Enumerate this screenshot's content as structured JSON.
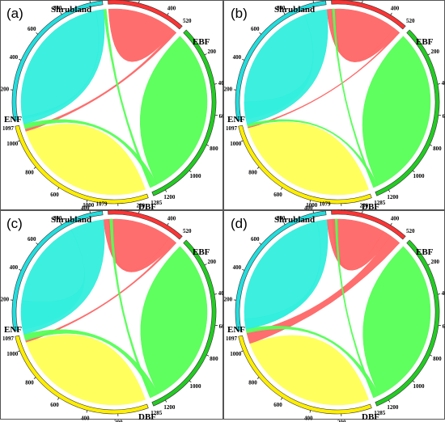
{
  "colors": {
    "Shrubland": "#ff6666",
    "EBF": "#55ff55",
    "DBF": "#ffff55",
    "ENF": "#33eedd"
  },
  "ring_colors": {
    "Shrubland": "#ff3333",
    "EBF": "#22cc22",
    "DBF": "#ffee00",
    "ENF": "#22dddd"
  },
  "tick_labels": {
    "Shrubland": [
      "200",
      "400"
    ],
    "EBF": [
      "200",
      "400",
      "600",
      "800",
      "1000",
      "1200"
    ],
    "DBF": [
      "200",
      "400",
      "600",
      "800",
      "1000"
    ],
    "ENF": [
      "200",
      "400",
      "600",
      "800",
      "1000"
    ]
  },
  "panels": [
    {
      "label": "(a)",
      "chart_data": {
        "type": "chord",
        "groups": [
          {
            "name": "Shrubland",
            "total": 520
          },
          {
            "name": "EBF",
            "total": 1285
          },
          {
            "name": "DBF",
            "total": 1097
          },
          {
            "name": "ENF",
            "total": 1079
          }
        ],
        "totals_labels": [
          "520",
          "1285",
          "1097",
          "1079"
        ],
        "flows": [
          {
            "from": "Shrubland",
            "to": "Shrubland",
            "value": 500
          },
          {
            "from": "Shrubland",
            "to": "DBF",
            "value": 20
          },
          {
            "from": "EBF",
            "to": "EBF",
            "value": 1230
          },
          {
            "from": "EBF",
            "to": "DBF",
            "value": 35
          },
          {
            "from": "EBF",
            "to": "ENF",
            "value": 20
          },
          {
            "from": "DBF",
            "to": "DBF",
            "value": 1042
          },
          {
            "from": "ENF",
            "to": "ENF",
            "value": 1025
          },
          {
            "from": "ENF",
            "to": "DBF",
            "value": 54
          }
        ]
      }
    },
    {
      "label": "(b)",
      "chart_data": {
        "type": "chord",
        "groups": [
          {
            "name": "Shrubland",
            "total": 520
          },
          {
            "name": "EBF",
            "total": 1285
          },
          {
            "name": "DBF",
            "total": 1097
          },
          {
            "name": "ENF",
            "total": 1079
          }
        ],
        "totals_labels": [
          "520",
          "1285",
          "1097",
          "1079"
        ],
        "flows": [
          {
            "from": "Shrubland",
            "to": "Shrubland",
            "value": 470
          },
          {
            "from": "Shrubland",
            "to": "ENF",
            "value": 40
          },
          {
            "from": "Shrubland",
            "to": "DBF",
            "value": 10
          },
          {
            "from": "EBF",
            "to": "EBF",
            "value": 1250
          },
          {
            "from": "EBF",
            "to": "DBF",
            "value": 20
          },
          {
            "from": "EBF",
            "to": "ENF",
            "value": 15
          },
          {
            "from": "DBF",
            "to": "DBF",
            "value": 1067
          },
          {
            "from": "ENF",
            "to": "ENF",
            "value": 919
          },
          {
            "from": "ENF",
            "to": "DBF",
            "value": 160
          }
        ]
      }
    },
    {
      "label": "(c)",
      "chart_data": {
        "type": "chord",
        "groups": [
          {
            "name": "Shrubland",
            "total": 520
          },
          {
            "name": "EBF",
            "total": 1285
          },
          {
            "name": "DBF",
            "total": 1097
          },
          {
            "name": "ENF",
            "total": 1079
          }
        ],
        "totals_labels": [
          "520",
          "1285",
          "1097",
          "1079"
        ],
        "flows": [
          {
            "from": "Shrubland",
            "to": "Shrubland",
            "value": 460
          },
          {
            "from": "Shrubland",
            "to": "ENF",
            "value": 45
          },
          {
            "from": "Shrubland",
            "to": "DBF",
            "value": 15
          },
          {
            "from": "EBF",
            "to": "EBF",
            "value": 1220
          },
          {
            "from": "EBF",
            "to": "DBF",
            "value": 45
          },
          {
            "from": "EBF",
            "to": "ENF",
            "value": 20
          },
          {
            "from": "DBF",
            "to": "DBF",
            "value": 1037
          },
          {
            "from": "ENF",
            "to": "ENF",
            "value": 839
          },
          {
            "from": "ENF",
            "to": "DBF",
            "value": 240
          }
        ]
      }
    },
    {
      "label": "(d)",
      "chart_data": {
        "type": "chord",
        "groups": [
          {
            "name": "Shrubland",
            "total": 520
          },
          {
            "name": "EBF",
            "total": 1285
          },
          {
            "name": "DBF",
            "total": 1097
          },
          {
            "name": "ENF",
            "total": 1079
          }
        ],
        "totals_labels": [
          "520",
          "1285",
          "1097",
          "1079"
        ],
        "flows": [
          {
            "from": "Shrubland",
            "to": "Shrubland",
            "value": 380
          },
          {
            "from": "Shrubland",
            "to": "ENF",
            "value": 60
          },
          {
            "from": "Shrubland",
            "to": "DBF",
            "value": 80
          },
          {
            "from": "EBF",
            "to": "EBF",
            "value": 1240
          },
          {
            "from": "EBF",
            "to": "DBF",
            "value": 30
          },
          {
            "from": "EBF",
            "to": "ENF",
            "value": 15
          },
          {
            "from": "DBF",
            "to": "DBF",
            "value": 1027
          },
          {
            "from": "ENF",
            "to": "ENF",
            "value": 1009
          },
          {
            "from": "ENF",
            "to": "DBF",
            "value": 70
          }
        ]
      }
    }
  ]
}
